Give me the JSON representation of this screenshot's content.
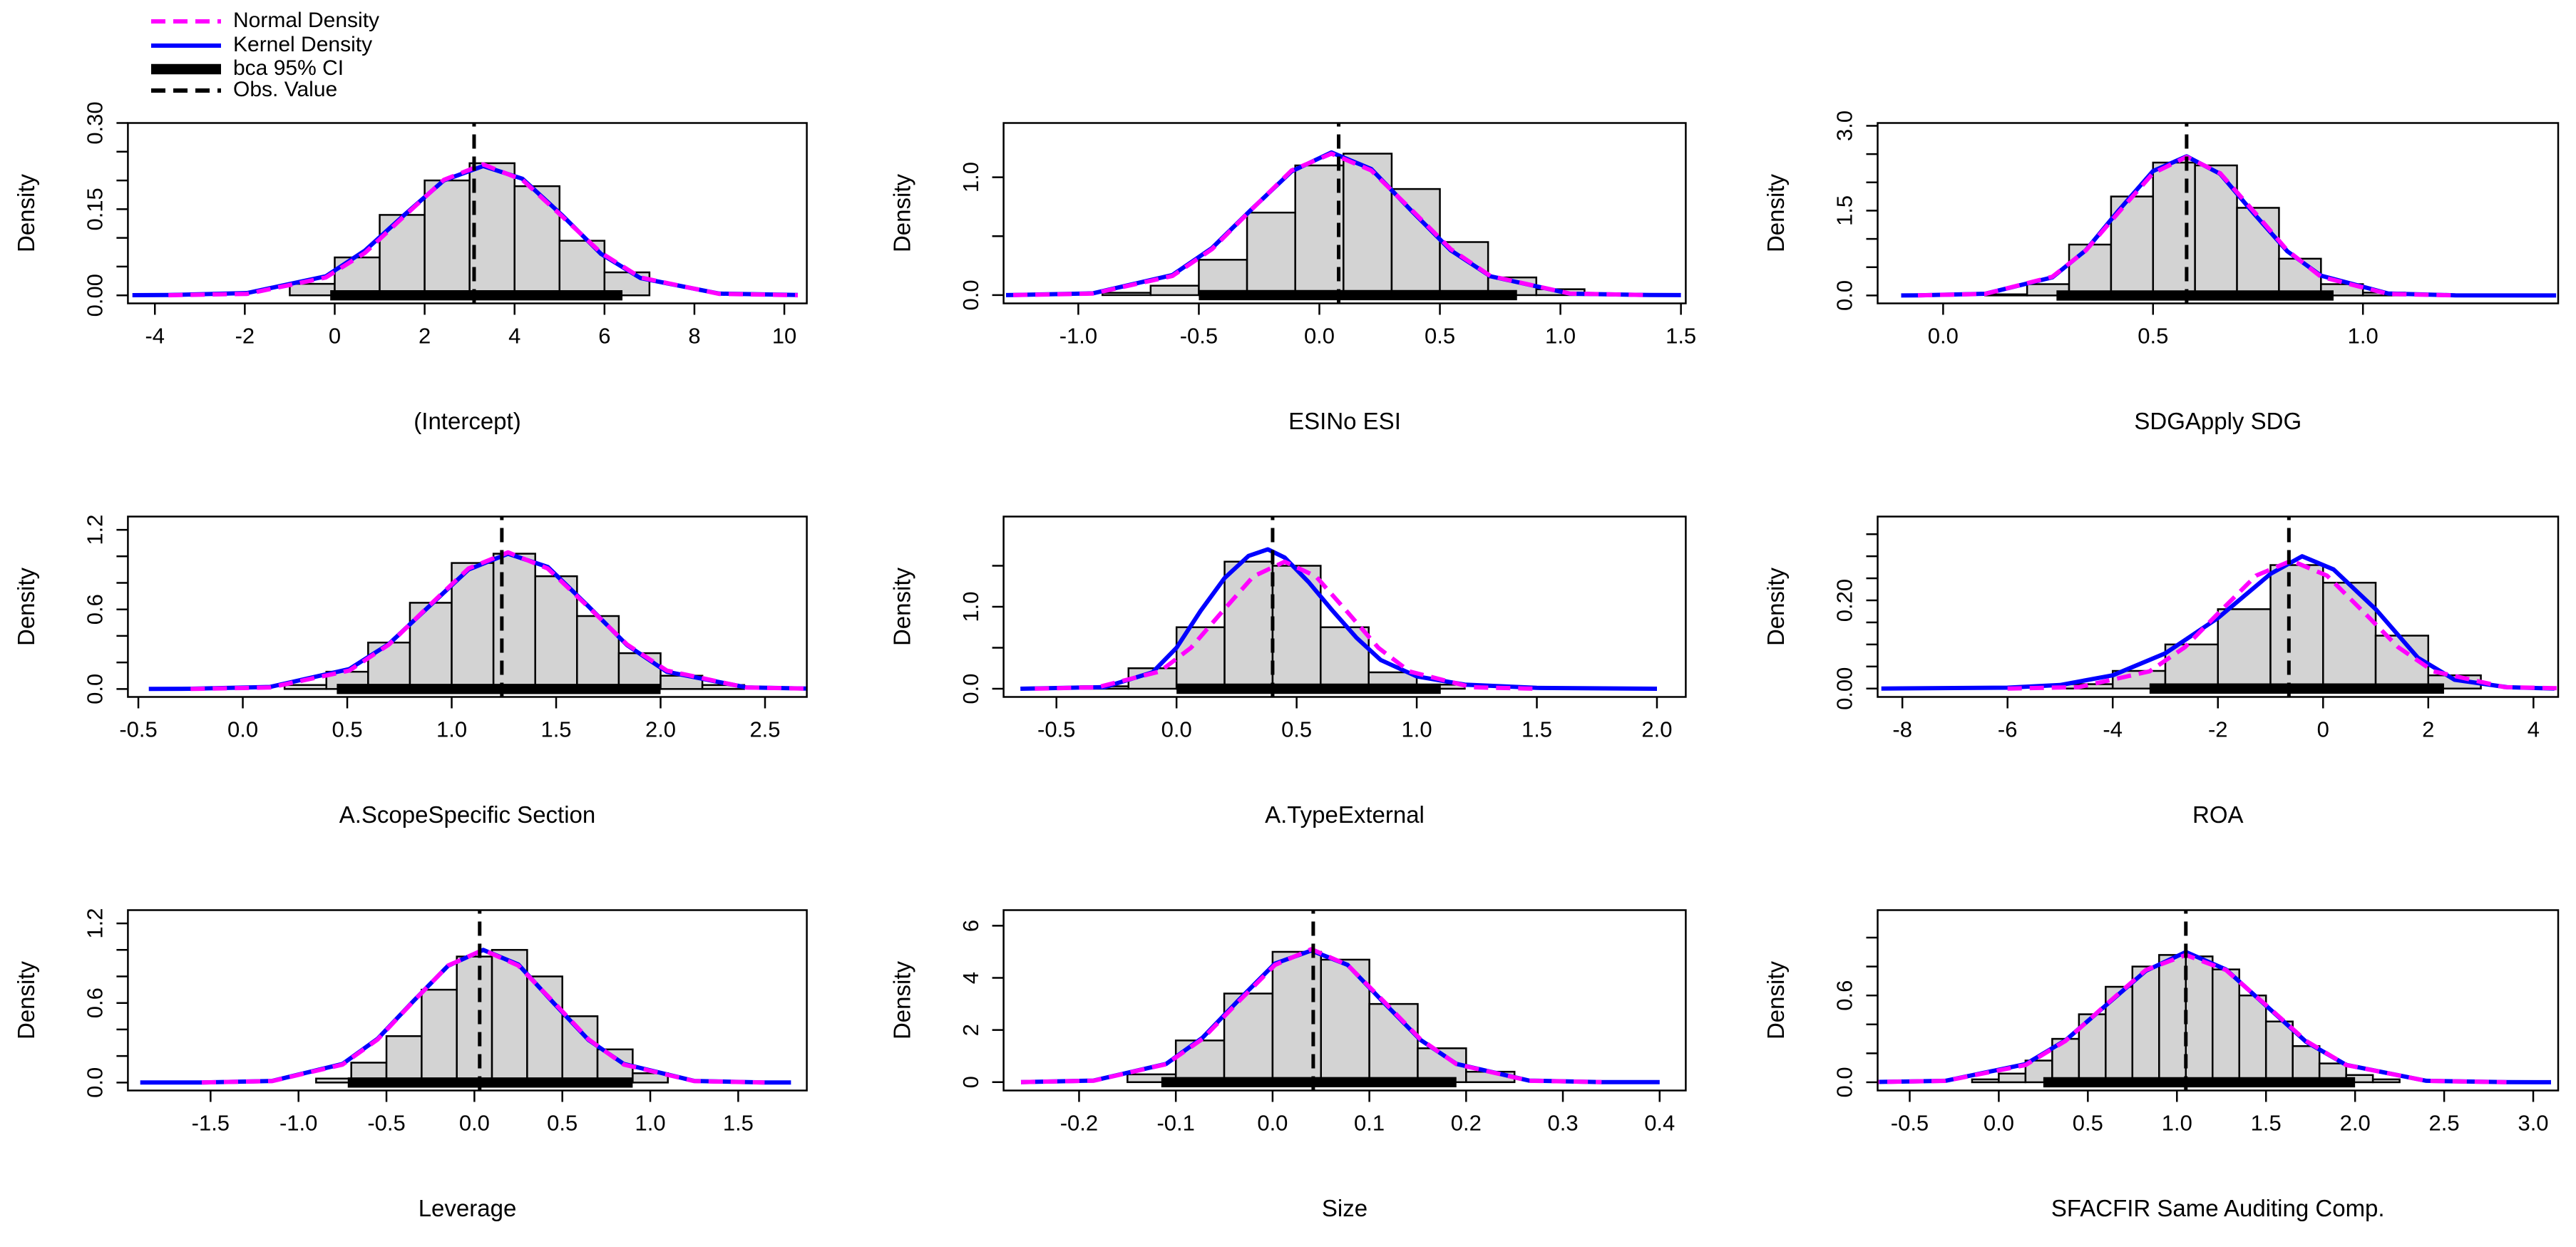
{
  "legend": {
    "items": [
      {
        "name": "Normal Density",
        "color": "#ff00ff",
        "style": "dashed"
      },
      {
        "name": "Kernel Density",
        "color": "#0000ff",
        "style": "solid"
      },
      {
        "name": "bca 95% CI",
        "color": "#000000",
        "style": "thick"
      },
      {
        "name": "Obs. Value",
        "color": "#000000",
        "style": "dashed"
      }
    ]
  },
  "chart_data": [
    {
      "type": "histogram",
      "xlabel": "(Intercept)",
      "ylabel": "Density",
      "xlim": [
        -4.6,
        10.5
      ],
      "xticks": [
        -4,
        -2,
        0,
        2,
        4,
        6,
        8,
        10
      ],
      "ylim": [
        -0.014,
        0.3
      ],
      "yticks": [
        {
          "value": 0,
          "label": "0.00"
        },
        0.15,
        {
          "value": 0.3,
          "label": "0.30"
        }
      ],
      "yminor": [
        0.05,
        0.1,
        0.2,
        0.25
      ],
      "bins": [
        -1,
        0,
        1,
        2,
        3,
        4,
        5,
        6,
        7
      ],
      "counts": [
        0.02,
        0.066,
        0.14,
        0.2,
        0.23,
        0.19,
        0.095,
        0.04
      ],
      "normal": {
        "x": [
          -3.7,
          -1.95,
          -0.2,
          0.675,
          1.55,
          2.425,
          3.3,
          4.175,
          5.05,
          5.925,
          6.8,
          8.55,
          10.3
        ],
        "values": [
          0.0001,
          0.0025,
          0.031,
          0.074,
          0.138,
          0.201,
          0.228,
          0.201,
          0.138,
          0.074,
          0.031,
          0.0025,
          0.0001
        ]
      },
      "kernel": {
        "x": [
          -4.5,
          -3.7,
          -1.95,
          -0.2,
          0.675,
          1.55,
          2.425,
          3.3,
          4.175,
          5.05,
          5.925,
          6.8,
          8.55,
          10.3
        ],
        "values": [
          0.0003,
          0.0005,
          0.004,
          0.033,
          0.078,
          0.14,
          0.2,
          0.225,
          0.203,
          0.14,
          0.072,
          0.03,
          0.003,
          0.0005
        ]
      },
      "ci": [
        -0.1,
        6.4
      ],
      "obs": 3.1
    },
    {
      "type": "histogram",
      "xlabel": "ESINo ESI",
      "ylabel": "Density",
      "xlim": [
        -1.31,
        1.52
      ],
      "xticks": [
        {
          "value": -1,
          "label": "-1.0"
        },
        -0.5,
        {
          "value": 0,
          "label": "0.0"
        },
        0.5,
        {
          "value": 1,
          "label": "1.0"
        },
        1.5
      ],
      "ylim": [
        -0.07,
        1.46
      ],
      "yticks": [
        {
          "value": 0,
          "label": "0.0"
        },
        {
          "value": 1,
          "label": "1.0"
        }
      ],
      "yminor": [
        0.5
      ],
      "bins": [
        -0.9,
        -0.7,
        -0.5,
        -0.3,
        -0.1,
        0.1,
        0.3,
        0.5,
        0.7,
        0.9,
        1.1
      ],
      "counts": [
        0.02,
        0.08,
        0.3,
        0.7,
        1.1,
        1.2,
        0.9,
        0.45,
        0.15,
        0.05
      ],
      "normal": {
        "x": [
          -1.27,
          -0.94,
          -0.61,
          -0.445,
          -0.28,
          -0.115,
          0.05,
          0.215,
          0.38,
          0.545,
          0.71,
          1.04,
          1.37
        ],
        "values": [
          0.0004,
          0.013,
          0.162,
          0.39,
          0.728,
          1.058,
          1.2,
          1.058,
          0.728,
          0.39,
          0.162,
          0.013,
          0.0004
        ]
      },
      "kernel": {
        "x": [
          -1.3,
          -1.27,
          -0.94,
          -0.61,
          -0.445,
          -0.28,
          -0.115,
          0.05,
          0.215,
          0.38,
          0.545,
          0.71,
          1.04,
          1.37,
          1.5
        ],
        "values": [
          0.0002,
          0.001,
          0.015,
          0.17,
          0.4,
          0.73,
          1.05,
          1.21,
          1.07,
          0.72,
          0.38,
          0.16,
          0.012,
          0.001,
          0.0001
        ]
      },
      "ci": [
        -0.5,
        0.82
      ],
      "obs": 0.08
    },
    {
      "type": "histogram",
      "xlabel": "SDGApply SDG",
      "ylabel": "Density",
      "xlim": [
        -0.156,
        1.465
      ],
      "xticks": [
        {
          "value": 0,
          "label": "0.0"
        },
        0.5,
        {
          "value": 1,
          "label": "1.0"
        }
      ],
      "ylim": [
        -0.14,
        3.05
      ],
      "yticks": [
        {
          "value": 0,
          "label": "0.0"
        },
        1.5,
        {
          "value": 3,
          "label": "3.0"
        }
      ],
      "yminor": [
        0.5,
        1,
        2,
        2.5
      ],
      "bins": [
        0.1,
        0.2,
        0.3,
        0.4,
        0.5,
        0.6,
        0.7,
        0.8,
        0.9,
        1,
        1.1
      ],
      "counts": [
        0.02,
        0.2,
        0.9,
        1.75,
        2.35,
        2.3,
        1.55,
        0.65,
        0.2,
        0.05
      ],
      "normal": {
        "x": [
          -0.06,
          0.1,
          0.26,
          0.34,
          0.42,
          0.5,
          0.58,
          0.66,
          0.74,
          0.82,
          0.9,
          1.06,
          1.22
        ],
        "values": [
          0.0007,
          0.027,
          0.331,
          0.796,
          1.487,
          2.161,
          2.45,
          2.161,
          1.487,
          0.796,
          0.331,
          0.027,
          0.0007
        ]
      },
      "kernel": {
        "x": [
          -0.1,
          -0.06,
          0.1,
          0.26,
          0.34,
          0.42,
          0.5,
          0.58,
          0.66,
          0.74,
          0.82,
          0.9,
          1.06,
          1.22,
          1.46
        ],
        "values": [
          0.0001,
          0.002,
          0.03,
          0.32,
          0.8,
          1.52,
          2.2,
          2.46,
          2.15,
          1.45,
          0.78,
          0.35,
          0.035,
          0.002,
          0.0001
        ]
      },
      "ci": [
        0.27,
        0.93
      ],
      "obs": 0.58
    },
    {
      "type": "histogram",
      "xlabel": "A.ScopeSpecific Section",
      "ylabel": "Density",
      "xlim": [
        -0.55,
        2.7
      ],
      "xticks": [
        -0.5,
        {
          "value": 0,
          "label": "0.0"
        },
        0.5,
        {
          "value": 1,
          "label": "1.0"
        },
        1.5,
        {
          "value": 2,
          "label": "2.0"
        },
        2.5
      ],
      "ylim": [
        -0.06,
        1.3
      ],
      "yticks": [
        {
          "value": 0,
          "label": "0.0"
        },
        0.6,
        1.2
      ],
      "yminor": [
        0.2,
        0.4,
        0.8,
        1
      ],
      "bins": [
        0.2,
        0.4,
        0.6,
        0.8,
        1,
        1.2,
        1.4,
        1.6,
        1.8,
        2,
        2.2,
        2.4
      ],
      "counts": [
        0.03,
        0.13,
        0.35,
        0.65,
        0.95,
        1.02,
        0.85,
        0.55,
        0.27,
        0.1,
        0.03
      ],
      "normal": {
        "x": [
          -0.25,
          0.13,
          0.51,
          0.7,
          0.89,
          1.08,
          1.27,
          1.46,
          1.65,
          1.84,
          2.03,
          2.41,
          2.79
        ],
        "values": [
          0.0003,
          0.011,
          0.139,
          0.335,
          0.625,
          0.908,
          1.03,
          0.908,
          0.625,
          0.335,
          0.139,
          0.011,
          0.0003
        ]
      },
      "kernel": {
        "x": [
          -0.45,
          -0.25,
          0.13,
          0.51,
          0.7,
          0.89,
          1.08,
          1.27,
          1.46,
          1.65,
          1.84,
          2.03,
          2.41,
          2.79
        ],
        "values": [
          0.0002,
          0.002,
          0.015,
          0.15,
          0.34,
          0.62,
          0.9,
          1.02,
          0.92,
          0.63,
          0.33,
          0.13,
          0.012,
          0.001
        ]
      },
      "ci": [
        0.45,
        2
      ],
      "obs": 1.24
    },
    {
      "type": "histogram",
      "xlabel": "A.TypeExternal",
      "ylabel": "Density",
      "xlim": [
        -0.72,
        2.12
      ],
      "xticks": [
        -0.5,
        {
          "value": 0,
          "label": "0.0"
        },
        0.5,
        {
          "value": 1,
          "label": "1.0"
        },
        1.5,
        {
          "value": 2,
          "label": "2.0"
        }
      ],
      "ylim": [
        -0.1,
        2.1
      ],
      "yticks": [
        {
          "value": 0,
          "label": "0.0"
        },
        {
          "value": 1,
          "label": "1.0"
        }
      ],
      "yminor": [
        0.5,
        1.5
      ],
      "bins": [
        -0.4,
        -0.2,
        0,
        0.2,
        0.4,
        0.6,
        0.8,
        1,
        1.2
      ],
      "counts": [
        0.03,
        0.25,
        0.75,
        1.55,
        1.5,
        0.75,
        0.2,
        0.05
      ],
      "normal": {
        "x": [
          -0.59,
          -0.33,
          -0.07,
          0.06,
          0.19,
          0.32,
          0.45,
          0.58,
          0.71,
          0.84,
          0.97,
          1.23,
          1.49
        ],
        "values": [
          0.0005,
          0.017,
          0.21,
          0.5,
          0.94,
          1.37,
          1.55,
          1.37,
          0.94,
          0.5,
          0.21,
          0.017,
          0.0005
        ]
      },
      "kernel": {
        "x": [
          -0.65,
          -0.3,
          -0.1,
          0,
          0.1,
          0.2,
          0.3,
          0.38,
          0.45,
          0.55,
          0.65,
          0.75,
          0.85,
          1,
          1.2,
          1.5,
          2
        ],
        "values": [
          0,
          0.02,
          0.2,
          0.5,
          0.95,
          1.35,
          1.62,
          1.7,
          1.6,
          1.3,
          0.95,
          0.62,
          0.35,
          0.15,
          0.05,
          0.01,
          0
        ]
      },
      "ci": [
        0,
        1.1
      ],
      "obs": 0.4
    },
    {
      "type": "histogram",
      "xlabel": "ROA",
      "ylabel": "Density",
      "xlim": [
        -8.47,
        4.47
      ],
      "xticks": [
        -8,
        -6,
        -4,
        -2,
        0,
        2,
        4
      ],
      "ylim": [
        -0.019,
        0.39
      ],
      "yticks": [
        {
          "value": 0,
          "label": "0.00"
        },
        {
          "value": 0.2,
          "label": "0.20"
        }
      ],
      "yminor": [
        0.05,
        0.1,
        0.15,
        0.25,
        0.3,
        0.35
      ],
      "bins": [
        -5,
        -4,
        -3,
        -2,
        -1,
        0,
        1,
        2,
        3
      ],
      "counts": [
        0.01,
        0.04,
        0.1,
        0.18,
        0.28,
        0.24,
        0.12,
        0.03
      ],
      "normal": {
        "x": [
          -6,
          -4.65,
          -3.3,
          -2.625,
          -1.95,
          -1.275,
          -0.6,
          0.075,
          0.75,
          1.425,
          2.1,
          3.45,
          4.8
        ],
        "values": [
          0.0001,
          0.0032,
          0.039,
          0.094,
          0.176,
          0.256,
          0.29,
          0.256,
          0.176,
          0.094,
          0.039,
          0.0032,
          0.0001
        ]
      },
      "kernel": {
        "x": [
          -8.4,
          -6,
          -5,
          -4,
          -3,
          -2,
          -1,
          -0.4,
          0.2,
          1,
          1.8,
          2.5,
          3.5,
          4.4
        ],
        "values": [
          0,
          0.002,
          0.008,
          0.03,
          0.08,
          0.16,
          0.26,
          0.3,
          0.27,
          0.18,
          0.07,
          0.02,
          0.003,
          0
        ]
      },
      "ci": [
        -3.3,
        2.3
      ],
      "obs": -0.65
    },
    {
      "type": "histogram",
      "xlabel": "Leverage",
      "ylabel": "Density",
      "xlim": [
        -1.97,
        1.89
      ],
      "xticks": [
        -1.5,
        {
          "value": -1,
          "label": "-1.0"
        },
        -0.5,
        {
          "value": 0,
          "label": "0.0"
        },
        0.5,
        {
          "value": 1,
          "label": "1.0"
        },
        1.5
      ],
      "ylim": [
        -0.06,
        1.3
      ],
      "yticks": [
        {
          "value": 0,
          "label": "0.0"
        },
        0.6,
        1.2
      ],
      "yminor": [
        0.2,
        0.4,
        0.8,
        1
      ],
      "bins": [
        -0.9,
        -0.7,
        -0.5,
        -0.3,
        -0.1,
        0.1,
        0.3,
        0.5,
        0.7,
        0.9,
        1.1
      ],
      "counts": [
        0.03,
        0.15,
        0.35,
        0.7,
        0.95,
        1,
        0.8,
        0.5,
        0.25,
        0.07
      ],
      "normal": {
        "x": [
          -1.55,
          -1.15,
          -0.75,
          -0.55,
          -0.35,
          -0.15,
          0.05,
          0.25,
          0.45,
          0.65,
          0.85,
          1.25,
          1.65
        ],
        "values": [
          0.0003,
          0.011,
          0.135,
          0.325,
          0.607,
          0.882,
          1,
          0.882,
          0.607,
          0.325,
          0.135,
          0.011,
          0.0003
        ]
      },
      "kernel": {
        "x": [
          -1.9,
          -1.55,
          -1.15,
          -0.75,
          -0.55,
          -0.35,
          -0.15,
          0.05,
          0.25,
          0.45,
          0.65,
          0.85,
          1.25,
          1.65,
          1.8
        ],
        "values": [
          0.0001,
          0.001,
          0.012,
          0.14,
          0.33,
          0.61,
          0.88,
          1,
          0.89,
          0.6,
          0.32,
          0.14,
          0.012,
          0.001,
          0.0001
        ]
      },
      "ci": [
        -0.72,
        0.9
      ],
      "obs": 0.03
    },
    {
      "type": "histogram",
      "xlabel": "Size",
      "ylabel": "Density",
      "xlim": [
        -0.278,
        0.427
      ],
      "xticks": [
        -0.2,
        -0.1,
        {
          "value": 0,
          "label": "0.0"
        },
        0.1,
        0.2,
        0.3,
        0.4
      ],
      "ylim": [
        -0.32,
        6.6
      ],
      "yticks": [
        0,
        2,
        4,
        6
      ],
      "yminor": [],
      "bins": [
        -0.15,
        -0.1,
        -0.05,
        0,
        0.05,
        0.1,
        0.15,
        0.2,
        0.25
      ],
      "counts": [
        0.3,
        1.6,
        3.4,
        5,
        4.7,
        3,
        1.3,
        0.4
      ],
      "normal": {
        "x": [
          -0.26,
          -0.185,
          -0.11,
          -0.0725,
          -0.035,
          0.0025,
          0.04,
          0.0775,
          0.115,
          0.1525,
          0.19,
          0.265,
          0.34
        ],
        "values": [
          0.0015,
          0.056,
          0.689,
          1.658,
          3.096,
          4.498,
          5.1,
          4.498,
          3.096,
          1.658,
          0.689,
          0.056,
          0.0015
        ]
      },
      "kernel": {
        "x": [
          -0.26,
          -0.185,
          -0.11,
          -0.0725,
          -0.035,
          0.0025,
          0.04,
          0.0775,
          0.115,
          0.1525,
          0.19,
          0.265,
          0.34,
          0.4
        ],
        "values": [
          0.002,
          0.06,
          0.7,
          1.7,
          3.15,
          4.55,
          5.05,
          4.5,
          3.05,
          1.63,
          0.7,
          0.06,
          0.002,
          0.0001
        ]
      },
      "ci": [
        -0.115,
        0.19
      ],
      "obs": 0.042
    },
    {
      "type": "histogram",
      "xlabel": "SFACFIR Same Auditing Comp.",
      "ylabel": "Density",
      "xlim": [
        -0.68,
        3.14
      ],
      "xticks": [
        -0.5,
        {
          "value": 0,
          "label": "0.0"
        },
        0.5,
        {
          "value": 1,
          "label": "1.0"
        },
        1.5,
        {
          "value": 2,
          "label": "2.0"
        },
        2.5,
        {
          "value": 3,
          "label": "3.0"
        }
      ],
      "ylim": [
        -0.057,
        1.19
      ],
      "yticks": [
        {
          "value": 0,
          "label": "0.0"
        },
        0.6
      ],
      "yminor": [
        0.2,
        0.4,
        0.8,
        1
      ],
      "bins": [
        -0.15,
        0,
        0.15,
        0.3,
        0.45,
        0.6,
        0.75,
        0.9,
        1.05,
        1.2,
        1.35,
        1.5,
        1.65,
        1.8,
        1.95,
        2.1,
        2.25
      ],
      "counts": [
        0.02,
        0.06,
        0.15,
        0.3,
        0.47,
        0.66,
        0.8,
        0.88,
        0.87,
        0.78,
        0.6,
        0.42,
        0.25,
        0.13,
        0.05,
        0.02
      ],
      "normal": {
        "x": [
          -0.75,
          -0.3,
          0.15,
          0.375,
          0.6,
          0.825,
          1.05,
          1.275,
          1.5,
          1.725,
          1.95,
          2.4,
          2.85
        ],
        "values": [
          0.0003,
          0.0097,
          0.119,
          0.286,
          0.534,
          0.776,
          0.88,
          0.776,
          0.534,
          0.286,
          0.119,
          0.0097,
          0.0003
        ]
      },
      "kernel": {
        "x": [
          -0.75,
          -0.3,
          0.15,
          0.375,
          0.6,
          0.825,
          1.05,
          1.275,
          1.5,
          1.725,
          1.95,
          2.4,
          2.85,
          3.1
        ],
        "values": [
          0.0005,
          0.01,
          0.125,
          0.29,
          0.53,
          0.77,
          0.9,
          0.78,
          0.53,
          0.28,
          0.12,
          0.01,
          0.0005,
          0.0001
        ]
      },
      "ci": [
        0.25,
        2
      ],
      "obs": 1.05
    }
  ]
}
